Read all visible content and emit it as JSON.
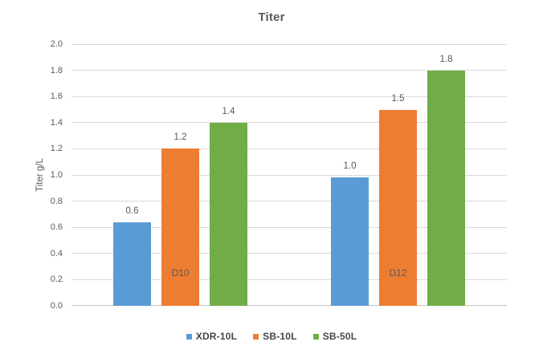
{
  "chart_data": {
    "type": "bar",
    "title": "Titer",
    "xlabel": "",
    "ylabel": "Titer g/L",
    "categories": [
      "D10",
      "D12"
    ],
    "series": [
      {
        "name": "XDR-10L",
        "color": "#5b9bd5",
        "values": [
          0.64,
          0.98
        ],
        "data_labels": [
          "0.6",
          "1.0"
        ]
      },
      {
        "name": "SB-10L",
        "color": "#ed7d31",
        "values": [
          1.2,
          1.5
        ],
        "data_labels": [
          "1.2",
          "1.5"
        ]
      },
      {
        "name": "SB-50L",
        "color": "#70ad47",
        "values": [
          1.4,
          1.8
        ],
        "data_labels": [
          "1.4",
          "1.8"
        ]
      }
    ],
    "ylim": [
      0,
      2.0
    ],
    "ytick_step": 0.2,
    "ytick_labels": [
      "0.0",
      "0.2",
      "0.4",
      "0.6",
      "0.8",
      "1.0",
      "1.2",
      "1.4",
      "1.6",
      "1.8",
      "2.0"
    ],
    "grid": true,
    "legend_position": "bottom",
    "style_colors": {
      "text": "#595959",
      "gridline": "#d9d9d9",
      "axis_line": "#c3c3c3",
      "background": "#ffffff"
    }
  }
}
